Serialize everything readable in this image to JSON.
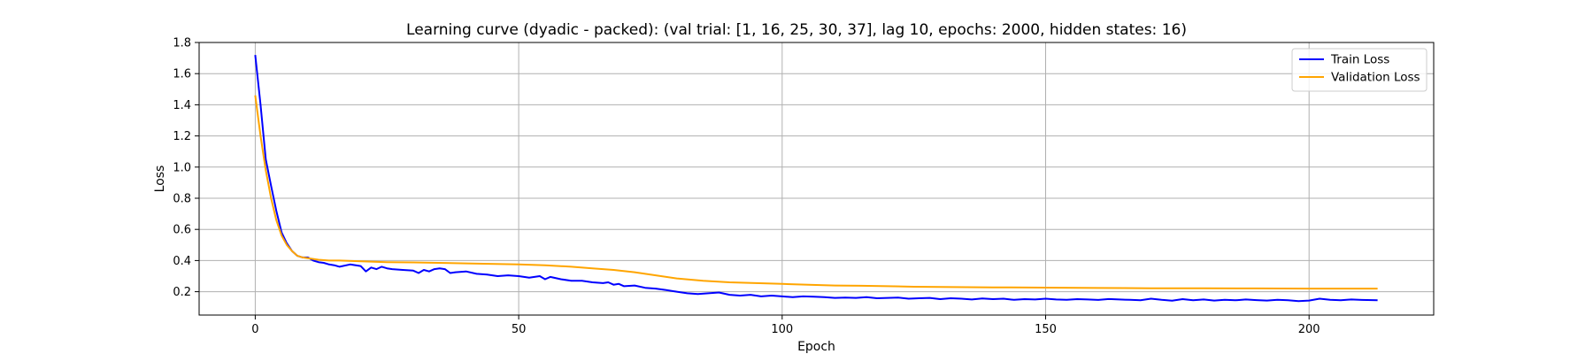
{
  "chart_data": {
    "type": "line",
    "title": "Learning curve (dyadic - packed): (val trial: [1, 16, 25, 30, 37], lag 10, epochs: 2000, hidden states: 16)",
    "xlabel": "Epoch",
    "ylabel": "Loss",
    "xlim": [
      -10.65,
      223.65
    ],
    "ylim": [
      0.05,
      1.8
    ],
    "xticks": [
      0,
      50,
      100,
      150,
      200
    ],
    "yticks": [
      0.2,
      0.4,
      0.6,
      0.8,
      1.0,
      1.2,
      1.4,
      1.6,
      1.8
    ],
    "ytick_labels": [
      "0.2",
      "0.4",
      "0.6",
      "0.8",
      "1.0",
      "1.2",
      "1.4",
      "1.6",
      "1.8"
    ],
    "grid": true,
    "legend_position": "top-right",
    "series": [
      {
        "name": "Train Loss",
        "color": "#0000ff",
        "x": [
          0,
          1,
          2,
          3,
          4,
          5,
          6,
          7,
          8,
          9,
          10,
          11,
          12,
          13,
          14,
          15,
          16,
          18,
          20,
          21,
          22,
          23,
          24,
          25,
          26,
          28,
          30,
          31,
          32,
          33,
          34,
          35,
          36,
          37,
          38,
          40,
          42,
          44,
          46,
          48,
          50,
          52,
          54,
          55,
          56,
          58,
          60,
          62,
          64,
          66,
          67,
          68,
          69,
          70,
          72,
          74,
          76,
          78,
          80,
          82,
          84,
          86,
          88,
          90,
          92,
          94,
          96,
          98,
          100,
          102,
          104,
          106,
          108,
          110,
          112,
          114,
          116,
          118,
          120,
          122,
          124,
          126,
          128,
          130,
          132,
          134,
          136,
          138,
          140,
          142,
          144,
          146,
          148,
          150,
          152,
          154,
          156,
          158,
          160,
          162,
          164,
          166,
          168,
          170,
          172,
          174,
          176,
          178,
          180,
          182,
          184,
          186,
          188,
          190,
          192,
          194,
          196,
          198,
          200,
          202,
          204,
          206,
          208,
          210,
          213
        ],
        "y": [
          1.72,
          1.4,
          1.05,
          0.88,
          0.72,
          0.58,
          0.51,
          0.46,
          0.43,
          0.42,
          0.42,
          0.4,
          0.39,
          0.385,
          0.375,
          0.37,
          0.36,
          0.375,
          0.365,
          0.33,
          0.355,
          0.345,
          0.36,
          0.35,
          0.345,
          0.34,
          0.335,
          0.32,
          0.34,
          0.33,
          0.345,
          0.35,
          0.345,
          0.32,
          0.325,
          0.33,
          0.315,
          0.31,
          0.3,
          0.305,
          0.3,
          0.29,
          0.3,
          0.28,
          0.295,
          0.28,
          0.27,
          0.27,
          0.26,
          0.255,
          0.26,
          0.245,
          0.25,
          0.235,
          0.24,
          0.225,
          0.22,
          0.21,
          0.2,
          0.19,
          0.185,
          0.19,
          0.195,
          0.18,
          0.175,
          0.18,
          0.17,
          0.175,
          0.17,
          0.165,
          0.17,
          0.168,
          0.165,
          0.16,
          0.162,
          0.16,
          0.165,
          0.158,
          0.16,
          0.162,
          0.155,
          0.158,
          0.16,
          0.152,
          0.158,
          0.155,
          0.15,
          0.157,
          0.152,
          0.155,
          0.148,
          0.152,
          0.15,
          0.155,
          0.15,
          0.148,
          0.152,
          0.15,
          0.147,
          0.153,
          0.15,
          0.148,
          0.145,
          0.155,
          0.148,
          0.142,
          0.152,
          0.145,
          0.15,
          0.143,
          0.148,
          0.145,
          0.15,
          0.146,
          0.143,
          0.148,
          0.145,
          0.14,
          0.143,
          0.155,
          0.148,
          0.145,
          0.15,
          0.147,
          0.145
        ]
      },
      {
        "name": "Validation Loss",
        "color": "#ffa500",
        "x": [
          0,
          1,
          2,
          3,
          4,
          5,
          6,
          7,
          8,
          9,
          10,
          11,
          12,
          14,
          16,
          20,
          25,
          30,
          40,
          50,
          55,
          60,
          64,
          68,
          72,
          76,
          80,
          85,
          90,
          95,
          100,
          105,
          110,
          115,
          120,
          125,
          130,
          140,
          150,
          160,
          170,
          180,
          190,
          200,
          213
        ],
        "y": [
          1.46,
          1.2,
          0.98,
          0.8,
          0.66,
          0.56,
          0.5,
          0.46,
          0.43,
          0.42,
          0.415,
          0.41,
          0.405,
          0.4,
          0.4,
          0.395,
          0.39,
          0.388,
          0.382,
          0.375,
          0.37,
          0.36,
          0.35,
          0.34,
          0.325,
          0.305,
          0.285,
          0.27,
          0.26,
          0.255,
          0.25,
          0.245,
          0.24,
          0.238,
          0.235,
          0.232,
          0.23,
          0.228,
          0.226,
          0.224,
          0.222,
          0.222,
          0.221,
          0.22,
          0.22
        ]
      }
    ]
  }
}
